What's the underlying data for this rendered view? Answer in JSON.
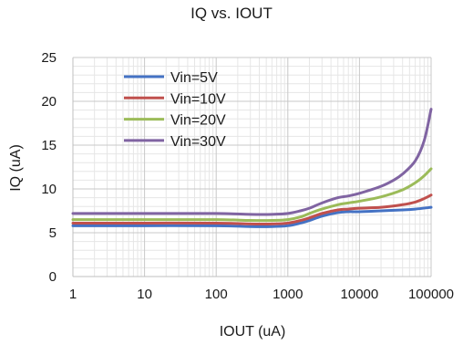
{
  "chart_data": {
    "type": "line",
    "title": "IQ vs. IOUT",
    "xlabel": "IOUT (uA)",
    "ylabel": "IQ (uA)",
    "x_scale": "log",
    "xlim": [
      1,
      100000
    ],
    "ylim": [
      0,
      25
    ],
    "x_ticks": [
      "1",
      "10",
      "100",
      "1000",
      "10000",
      "100000"
    ],
    "y_ticks": [
      "0",
      "5",
      "10",
      "15",
      "20",
      "25"
    ],
    "grid": "major and minor",
    "legend_position": "top-left inside plot",
    "series": [
      {
        "name": "Vin=5V",
        "color": "#4472C4",
        "x": [
          1,
          10,
          100,
          300,
          600,
          1000,
          1500,
          2000,
          3000,
          5000,
          7000,
          10000,
          20000,
          40000,
          60000,
          100000
        ],
        "y": [
          5.8,
          5.8,
          5.8,
          5.7,
          5.7,
          5.8,
          6.1,
          6.4,
          6.9,
          7.3,
          7.4,
          7.4,
          7.5,
          7.6,
          7.7,
          7.9
        ]
      },
      {
        "name": "Vin=10V",
        "color": "#C0504D",
        "x": [
          1,
          10,
          100,
          300,
          600,
          1000,
          1500,
          2000,
          3000,
          5000,
          7000,
          10000,
          20000,
          40000,
          60000,
          80000,
          100000
        ],
        "y": [
          6.1,
          6.1,
          6.1,
          6.0,
          6.0,
          6.1,
          6.4,
          6.7,
          7.2,
          7.6,
          7.7,
          7.8,
          7.9,
          8.2,
          8.5,
          8.9,
          9.3
        ]
      },
      {
        "name": "Vin=20V",
        "color": "#9BBB59",
        "x": [
          1,
          10,
          100,
          300,
          600,
          1000,
          1500,
          2000,
          3000,
          5000,
          7000,
          10000,
          20000,
          40000,
          60000,
          80000,
          100000
        ],
        "y": [
          6.5,
          6.5,
          6.5,
          6.4,
          6.4,
          6.5,
          6.8,
          7.2,
          7.7,
          8.2,
          8.4,
          8.6,
          9.1,
          9.9,
          10.7,
          11.5,
          12.3
        ]
      },
      {
        "name": "Vin=30V",
        "color": "#8064A2",
        "x": [
          1,
          10,
          100,
          300,
          600,
          1000,
          1500,
          2000,
          3000,
          5000,
          7000,
          10000,
          20000,
          30000,
          40000,
          60000,
          80000,
          100000
        ],
        "y": [
          7.2,
          7.2,
          7.2,
          7.1,
          7.1,
          7.2,
          7.5,
          7.8,
          8.4,
          9.0,
          9.2,
          9.5,
          10.3,
          11.0,
          11.7,
          13.2,
          15.5,
          19.1
        ]
      }
    ]
  }
}
